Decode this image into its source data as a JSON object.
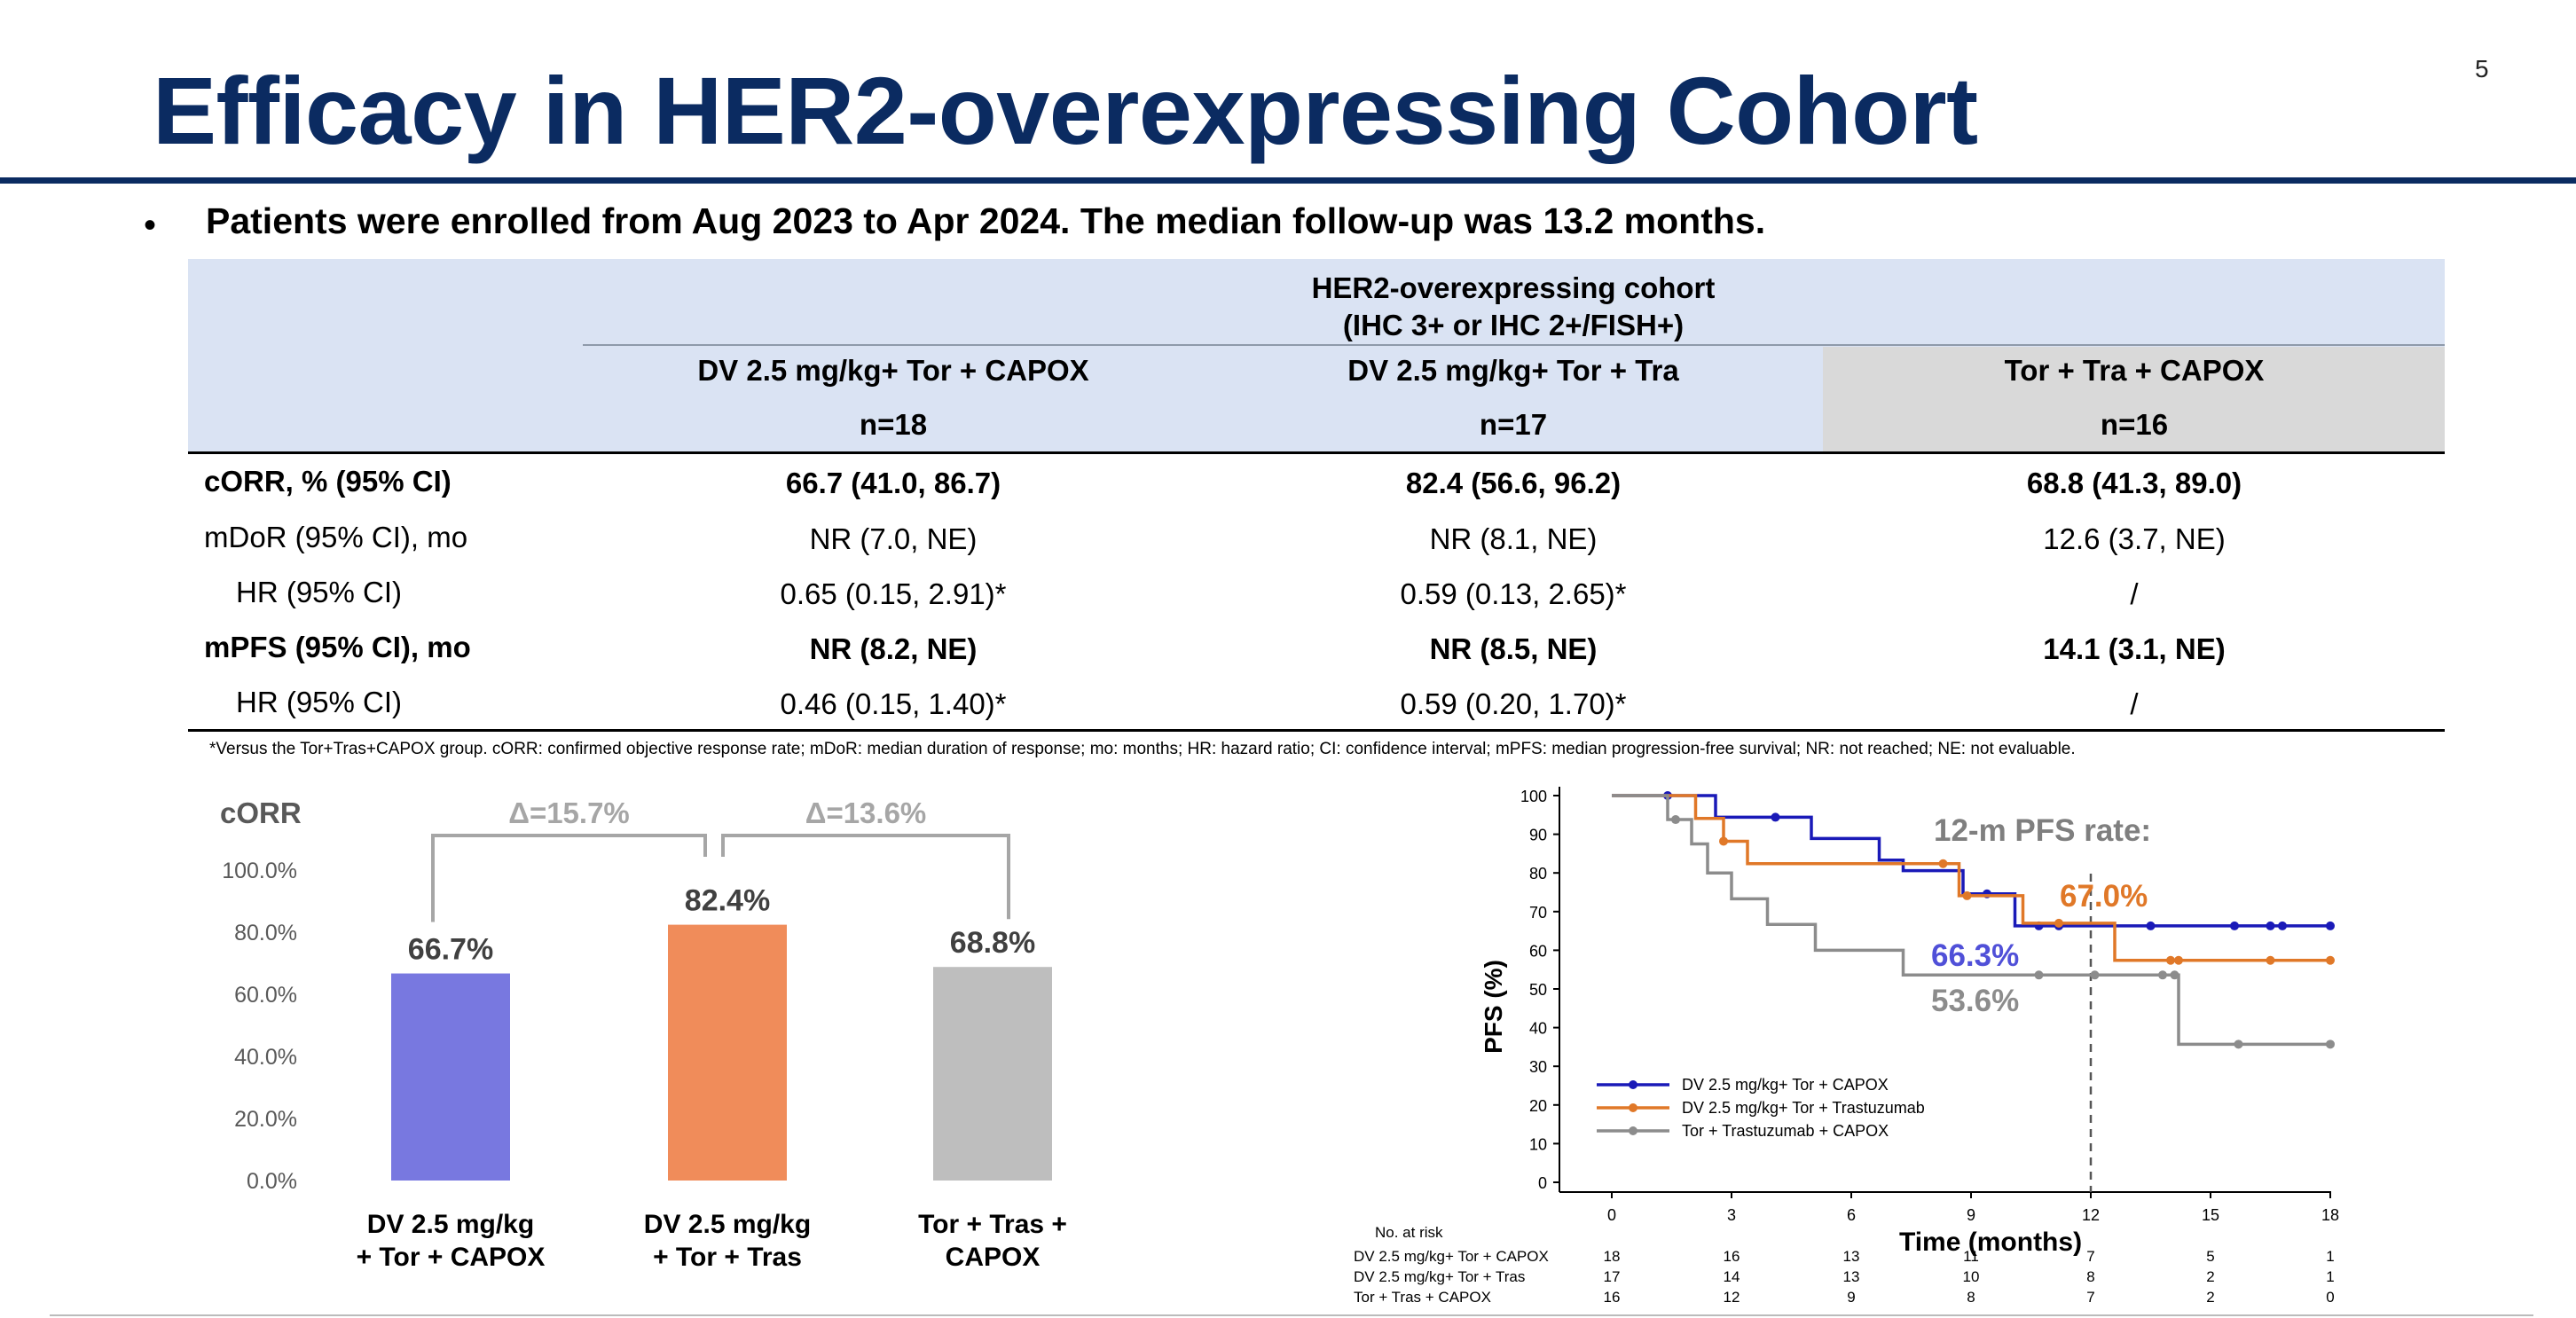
{
  "slide": {
    "title": "Efficacy in HER2-overexpressing Cohort",
    "page_number": "5",
    "bullet": "Patients were enrolled from Aug 2023 to Apr 2024. The median follow-up was 13.2 months.",
    "footnote": "*Versus the Tor+Tras+CAPOX group. cORR: confirmed objective response rate; mDoR: median duration of response; mo: months; HR: hazard ratio; CI: confidence interval; mPFS: median progression-free survival; NR: not reached; NE: not evaluable."
  },
  "table": {
    "cohort_title_line1": "HER2-overexpressing cohort",
    "cohort_title_line2": "(IHC 3+ or IHC 2+/FISH+)",
    "columns": [
      {
        "label": "DV 2.5 mg/kg+ Tor + CAPOX",
        "n": "n=18"
      },
      {
        "label": "DV 2.5 mg/kg+ Tor + Tra",
        "n": "n=17"
      },
      {
        "label": "Tor + Tra + CAPOX",
        "n": "n=16"
      }
    ],
    "rows": [
      {
        "label": "cORR, % (95% CI)",
        "bold": true,
        "values": [
          "66.7 (41.0, 86.7)",
          "82.4 (56.6, 96.2)",
          "68.8 (41.3, 89.0)"
        ]
      },
      {
        "label": "mDoR (95% CI), mo",
        "bold": false,
        "values": [
          "NR (7.0, NE)",
          "NR (8.1, NE)",
          "12.6 (3.7, NE)"
        ]
      },
      {
        "label": "HR (95% CI)",
        "bold": false,
        "values": [
          "0.65 (0.15, 2.91)*",
          "0.59 (0.13, 2.65)*",
          "/"
        ]
      },
      {
        "label": "mPFS (95% CI), mo",
        "bold": true,
        "values": [
          "NR (8.2, NE)",
          "NR (8.5, NE)",
          "14.1 (3.1, NE)"
        ]
      },
      {
        "label": "HR (95% CI)",
        "bold": false,
        "values": [
          "0.46 (0.15, 1.40)*",
          "0.59 (0.20, 1.70)*",
          "/"
        ]
      }
    ]
  },
  "chart_data": [
    {
      "type": "bar",
      "title": "cORR",
      "categories": [
        "DV 2.5 mg/kg\n+ Tor + CAPOX",
        "DV 2.5 mg/kg\n+ Tor + Tras",
        "Tor + Tras +\nCAPOX"
      ],
      "values": [
        66.7,
        82.4,
        68.8
      ],
      "value_labels": [
        "66.7%",
        "82.4%",
        "68.8%"
      ],
      "colors": [
        "#7878e0",
        "#f08c5a",
        "#bebebe"
      ],
      "ylim": [
        0,
        100
      ],
      "yticks": [
        "0.0%",
        "20.0%",
        "40.0%",
        "60.0%",
        "80.0%",
        "100.0%"
      ],
      "ytick_values": [
        0,
        20,
        40,
        60,
        80,
        100
      ],
      "annotations": [
        {
          "text": "Δ=15.7%",
          "from": 0,
          "to": 1
        },
        {
          "text": "Δ=13.6%",
          "from": 1,
          "to": 2
        }
      ],
      "legend": "none",
      "grid": false
    },
    {
      "type": "line",
      "step": true,
      "xlabel": "Time (months)",
      "ylabel": "PFS (%)",
      "xlim": [
        0,
        18
      ],
      "ylim": [
        0,
        100
      ],
      "xticks": [
        0,
        3,
        6,
        9,
        12,
        15,
        18
      ],
      "yticks": [
        0,
        10,
        20,
        30,
        40,
        50,
        60,
        70,
        80,
        90,
        100
      ],
      "legend_position": "bottom-left",
      "annotation_title": "12-m PFS rate:",
      "reference_x": 12,
      "series": [
        {
          "name": "DV 2.5 mg/kg+ Tor + CAPOX",
          "color": "#1a1ab8",
          "label": "66.3%",
          "label_color": "#5050d8",
          "steps": [
            [
              0,
              100
            ],
            [
              2.6,
              94.4
            ],
            [
              5,
              88.9
            ],
            [
              6.7,
              83.3
            ],
            [
              7.3,
              80.6
            ],
            [
              8.8,
              74.6
            ],
            [
              10.1,
              66.3
            ],
            [
              18,
              66.3
            ]
          ],
          "censors": [
            [
              1.4,
              100
            ],
            [
              4.1,
              94.4
            ],
            [
              9.4,
              74.6
            ],
            [
              10.7,
              66.3
            ],
            [
              11.2,
              66.3
            ],
            [
              13.5,
              66.3
            ],
            [
              15.6,
              66.3
            ],
            [
              16.5,
              66.3
            ],
            [
              16.8,
              66.3
            ],
            [
              18,
              66.3
            ]
          ]
        },
        {
          "name": "DV 2.5 mg/kg+ Tor + Trastuzumab",
          "color": "#e07828",
          "label": "67.0%",
          "label_color": "#e07828",
          "steps": [
            [
              0,
              100
            ],
            [
              2.1,
              94.1
            ],
            [
              2.8,
              88.2
            ],
            [
              3.4,
              82.4
            ],
            [
              8.7,
              74.1
            ],
            [
              10.3,
              67.0
            ],
            [
              12.6,
              57.4
            ],
            [
              18,
              57.4
            ]
          ],
          "censors": [
            [
              2.8,
              88.2
            ],
            [
              8.3,
              82.4
            ],
            [
              8.9,
              74.1
            ],
            [
              11.2,
              67.0
            ],
            [
              14.0,
              57.4
            ],
            [
              14.2,
              57.4
            ],
            [
              16.5,
              57.4
            ],
            [
              18,
              57.4
            ]
          ]
        },
        {
          "name": "Tor + Trastuzumab + CAPOX",
          "color": "#8c8c8c",
          "label": "53.6%",
          "label_color": "#8c8c8c",
          "steps": [
            [
              0,
              100
            ],
            [
              1.4,
              93.8
            ],
            [
              2.0,
              87.5
            ],
            [
              2.4,
              80.0
            ],
            [
              3.0,
              73.3
            ],
            [
              3.9,
              66.7
            ],
            [
              5.1,
              60.0
            ],
            [
              7.3,
              53.6
            ],
            [
              14.2,
              35.7
            ],
            [
              18,
              35.7
            ]
          ],
          "censors": [
            [
              1.6,
              93.8
            ],
            [
              10.7,
              53.6
            ],
            [
              12.1,
              53.6
            ],
            [
              13.8,
              53.6
            ],
            [
              14.1,
              53.6
            ],
            [
              15.7,
              35.7
            ],
            [
              18,
              35.7
            ]
          ]
        }
      ],
      "risk_table": {
        "title": "No. at risk",
        "rows": [
          {
            "label": "DV 2.5 mg/kg+ Tor + CAPOX",
            "values": [
              "18",
              "16",
              "13",
              "11",
              "7",
              "5",
              "1"
            ]
          },
          {
            "label": "DV 2.5 mg/kg+ Tor + Tras",
            "values": [
              "17",
              "14",
              "13",
              "10",
              "8",
              "2",
              "1"
            ]
          },
          {
            "label": "Tor + Tras + CAPOX",
            "values": [
              "16",
              "12",
              "9",
              "8",
              "7",
              "2",
              "0"
            ]
          }
        ]
      }
    }
  ]
}
